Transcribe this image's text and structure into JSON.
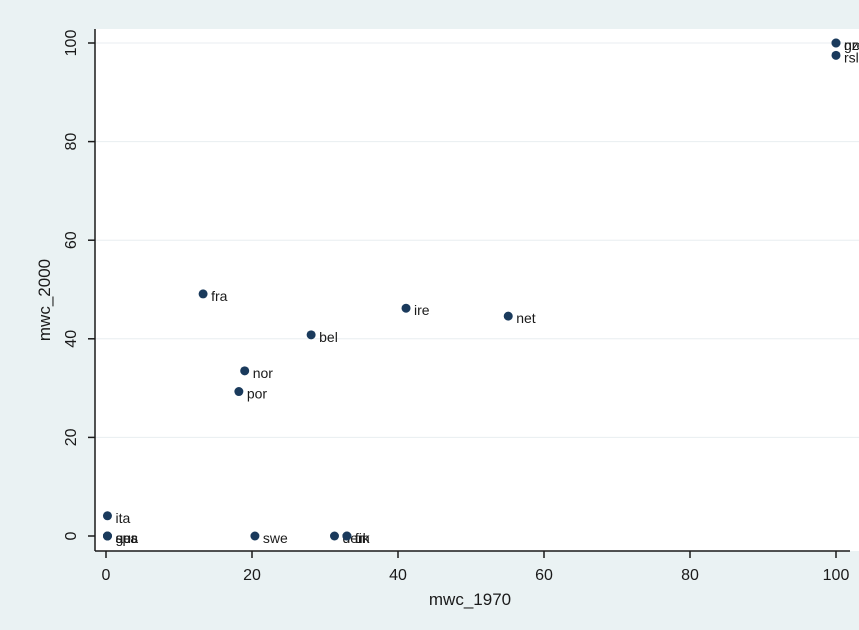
{
  "chart_data": {
    "type": "scatter",
    "xlabel": "mwc_1970",
    "ylabel": "mwc_2000",
    "xlim": [
      0,
      100
    ],
    "ylim": [
      0,
      100
    ],
    "xticks": [
      "0",
      "20",
      "40",
      "60",
      "80",
      "100"
    ],
    "yticks": [
      "0",
      "20",
      "40",
      "60",
      "80",
      "100"
    ],
    "grid": true,
    "marker_color": "#1a3a5c",
    "points": [
      {
        "label": "fra",
        "x": 13.3,
        "y": 49.1
      },
      {
        "label": "ire",
        "x": 41.1,
        "y": 46.2
      },
      {
        "label": "net",
        "x": 55.1,
        "y": 44.6
      },
      {
        "label": "bel",
        "x": 28.1,
        "y": 40.8
      },
      {
        "label": "nor",
        "x": 19.0,
        "y": 33.5
      },
      {
        "label": "por",
        "x": 18.2,
        "y": 29.3
      },
      {
        "label": "ita",
        "x": 0.2,
        "y": 4.1
      },
      {
        "label": "spa",
        "x": 0.2,
        "y": 0.0
      },
      {
        "label": "aus",
        "x": 0.2,
        "y": 0.0
      },
      {
        "label": "ger",
        "x": 0.2,
        "y": 0.0
      },
      {
        "label": "swe",
        "x": 20.4,
        "y": 0.0
      },
      {
        "label": "den",
        "x": 31.3,
        "y": 0.0
      },
      {
        "label": "fin",
        "x": 33.0,
        "y": 0.0
      },
      {
        "label": "uk",
        "x": 33.0,
        "y": 0.0
      },
      {
        "label": "nz",
        "x": 100,
        "y": 100
      },
      {
        "label": "gre",
        "x": 100,
        "y": 100
      },
      {
        "label": "rsl",
        "x": 100,
        "y": 97.5
      }
    ]
  }
}
